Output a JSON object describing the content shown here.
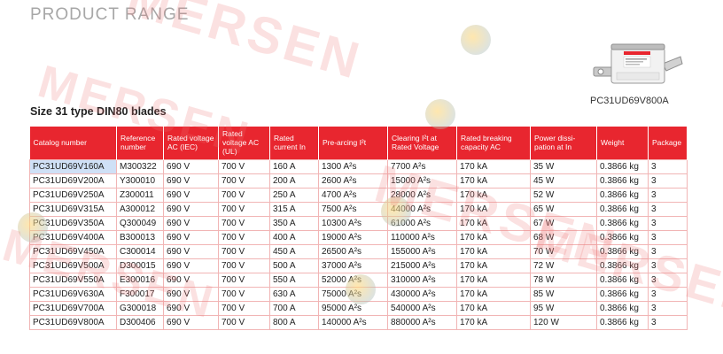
{
  "header": {
    "title": "PRODUCT RANGE"
  },
  "watermark": {
    "text": "MERSEN"
  },
  "product": {
    "caption": "PC31UD69V800A"
  },
  "section": {
    "heading": "Size 31 type DIN80 blades"
  },
  "table": {
    "headers": [
      "Catalog number",
      "Reference number",
      "Rated voltage AC (IEC)",
      "Rated voltage AC (UL)",
      "Rated current In",
      "Pre-arcing I²t",
      "Clearing I²t at Rated Voltage",
      "Rated breaking capacity AC",
      "Power dissi-pation at In",
      "Weight",
      "Package"
    ],
    "rows": [
      [
        "PC31UD69V160A",
        "M300322",
        "690 V",
        "700 V",
        "160 A",
        "1300 A²s",
        "7700 A²s",
        "170 kA",
        "35 W",
        "0.3866 kg",
        "3"
      ],
      [
        "PC31UD69V200A",
        "Y300010",
        "690 V",
        "700 V",
        "200 A",
        "2600 A²s",
        "15000 A²s",
        "170 kA",
        "45 W",
        "0.3866 kg",
        "3"
      ],
      [
        "PC31UD69V250A",
        "Z300011",
        "690 V",
        "700 V",
        "250 A",
        "4700 A²s",
        "28000 A²s",
        "170 kA",
        "52 W",
        "0.3866 kg",
        "3"
      ],
      [
        "PC31UD69V315A",
        "A300012",
        "690 V",
        "700 V",
        "315 A",
        "7500 A²s",
        "44000 A²s",
        "170 kA",
        "65 W",
        "0.3866 kg",
        "3"
      ],
      [
        "PC31UD69V350A",
        "Q300049",
        "690 V",
        "700 V",
        "350 A",
        "10300 A²s",
        "61000 A²s",
        "170 kA",
        "67 W",
        "0.3866 kg",
        "3"
      ],
      [
        "PC31UD69V400A",
        "B300013",
        "690 V",
        "700 V",
        "400 A",
        "19000 A²s",
        "110000 A²s",
        "170 kA",
        "68 W",
        "0.3866 kg",
        "3"
      ],
      [
        "PC31UD69V450A",
        "C300014",
        "690 V",
        "700 V",
        "450 A",
        "26500 A²s",
        "155000 A²s",
        "170 kA",
        "70 W",
        "0.3866 kg",
        "3"
      ],
      [
        "PC31UD69V500A",
        "D300015",
        "690 V",
        "700 V",
        "500 A",
        "37000 A²s",
        "215000 A²s",
        "170 kA",
        "72 W",
        "0.3866 kg",
        "3"
      ],
      [
        "PC31UD69V550A",
        "E300016",
        "690 V",
        "700 V",
        "550 A",
        "52000 A²s",
        "310000 A²s",
        "170 kA",
        "78 W",
        "0.3866 kg",
        "3"
      ],
      [
        "PC31UD69V630A",
        "F300017",
        "690 V",
        "700 V",
        "630 A",
        "75000 A²s",
        "430000 A²s",
        "170 kA",
        "85 W",
        "0.3866 kg",
        "3"
      ],
      [
        "PC31UD69V700A",
        "G300018",
        "690 V",
        "700 V",
        "700 A",
        "95000 A²s",
        "540000 A²s",
        "170 kA",
        "95 W",
        "0.3866 kg",
        "3"
      ],
      [
        "PC31UD69V800A",
        "D300406",
        "690 V",
        "700 V",
        "800 A",
        "140000 A²s",
        "880000 A²s",
        "170 kA",
        "120 W",
        "0.3866 kg",
        "3"
      ]
    ]
  }
}
